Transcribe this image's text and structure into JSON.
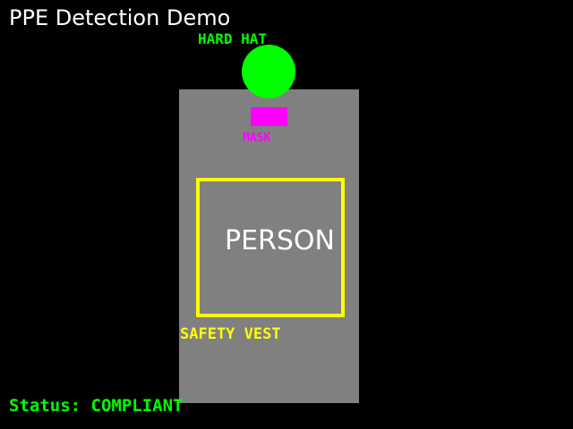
{
  "window": {
    "title": "PPE Detection Demo"
  },
  "scene": {
    "person_label": "PERSON",
    "person_region_color": "#808080"
  },
  "detections": {
    "hard_hat": {
      "label": "HARD HAT",
      "color": "#00ff00"
    },
    "mask": {
      "label": "MASK",
      "color": "#ff00ff"
    },
    "safety_vest": {
      "label": "SAFETY VEST",
      "color": "#ffff00"
    }
  },
  "status": {
    "text": "Status: COMPLIANT",
    "color": "#00ff00"
  }
}
